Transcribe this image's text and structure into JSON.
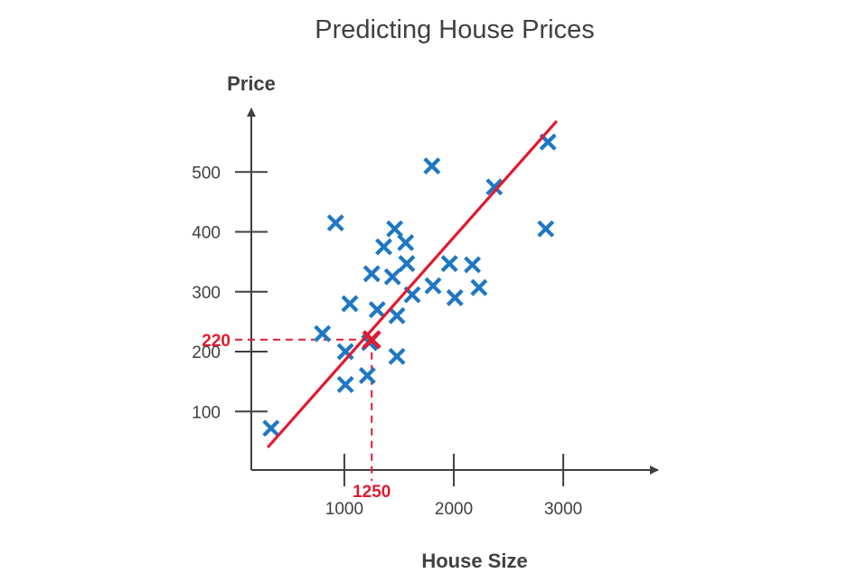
{
  "chart_data": {
    "type": "scatter",
    "title": "Predicting House Prices",
    "xlabel": "House Size",
    "ylabel": "Price",
    "x_ticks": [
      1000,
      2000,
      3000
    ],
    "y_ticks": [
      100,
      200,
      300,
      400,
      500
    ],
    "grid": false,
    "colors": {
      "points": "#1f77c4",
      "fit_line": "#e01b30",
      "axes": "#404040"
    },
    "points": [
      {
        "x": 330,
        "y": 72
      },
      {
        "x": 800,
        "y": 230
      },
      {
        "x": 920,
        "y": 415
      },
      {
        "x": 1010,
        "y": 200
      },
      {
        "x": 1010,
        "y": 145
      },
      {
        "x": 1050,
        "y": 280
      },
      {
        "x": 1210,
        "y": 160
      },
      {
        "x": 1230,
        "y": 215
      },
      {
        "x": 1250,
        "y": 330
      },
      {
        "x": 1300,
        "y": 270
      },
      {
        "x": 1360,
        "y": 375
      },
      {
        "x": 1440,
        "y": 325
      },
      {
        "x": 1460,
        "y": 405
      },
      {
        "x": 1480,
        "y": 260
      },
      {
        "x": 1480,
        "y": 192
      },
      {
        "x": 1560,
        "y": 382
      },
      {
        "x": 1570,
        "y": 347
      },
      {
        "x": 1620,
        "y": 295
      },
      {
        "x": 1800,
        "y": 510
      },
      {
        "x": 1810,
        "y": 310
      },
      {
        "x": 1960,
        "y": 347
      },
      {
        "x": 2010,
        "y": 290
      },
      {
        "x": 2170,
        "y": 345
      },
      {
        "x": 2230,
        "y": 307
      },
      {
        "x": 2370,
        "y": 475
      },
      {
        "x": 2840,
        "y": 405
      },
      {
        "x": 2860,
        "y": 550
      }
    ],
    "fit_line": {
      "from": {
        "x": 300,
        "y": 40
      },
      "to": {
        "x": 2940,
        "y": 585
      }
    },
    "highlight": {
      "x": 1250,
      "y": 220,
      "x_label": "1250",
      "y_label": "220"
    }
  }
}
